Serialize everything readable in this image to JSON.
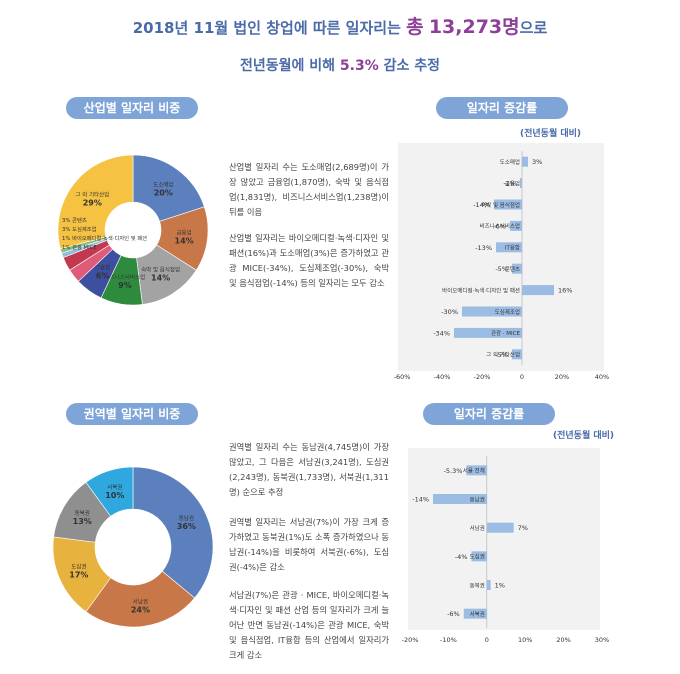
{
  "header": {
    "line1_prefix": "2018년 11월 법인 창업에 따른 일자리는",
    "line1_total_word": "총",
    "line1_total": "13,273명",
    "line1_suffix": "으로",
    "line2_prefix": "전년동월에 비해",
    "line2_pct": "5.3%",
    "line2_suffix": "감소 추정"
  },
  "sections": {
    "industry_share_title": "산업별 일자리 비중",
    "industry_change_title": "일자리 증감률",
    "industry_change_note": "(전년동월 대비)",
    "region_share_title": "권역별 일자리 비중",
    "region_change_title": "일자리 증감률",
    "region_change_note": "(전년동월 대비)"
  },
  "text": {
    "industry_p1": "산업별 일자리 수는 도소매업(2,689명)이 가장 많았고 금융업(1,870명), 숙박 및 음식점업(1,831명), 비즈니스서비스업(1,238명)이 뒤를 이음",
    "industry_p2": "산업별 일자리는 바이오메디컬·녹색·디자인 및 패션(16%)과 도소매업(3%)은 증가하였고 관광 MICE(-34%), 도심제조업(-30%), 숙박 및 음식점업(-14%) 등의 일자리는 모두 감소",
    "region_p1": "권역별 일자리 수는 동남권(4,745명)이 가장 많았고, 그 다음은 서남권(3,241명), 도심권(2,243명), 동북권(1,733명), 서북권(1,311명) 순으로 추정",
    "region_p2": "권역별 일자리는 서남권(7%)이 가장 크게 증가하였고 동북권(1%)도 소폭 증가하였으나 동남권(-14%)을 비롯하여 서북권(-6%), 도심권(-4%)은 감소",
    "region_p3": "서남권(7%)은 관광 · MICE, 바이오메디컬·녹색·디자인 및 패션 산업 등의 일자리가 크게 늘어난 반면 동남권(-14%)은 관광 MICE, 숙박 및 음식점업, IT융합 등의 산업에서 일자리가 크게 감소"
  },
  "chart_data": [
    {
      "type": "pie",
      "title": "산업별 일자리 비중",
      "slices": [
        {
          "label": "도소매업",
          "value": 20,
          "text": "20%",
          "color": "#5b80bd"
        },
        {
          "label": "금융업",
          "value": 14,
          "text": "14%",
          "color": "#c87848"
        },
        {
          "label": "숙박 및 음식점업",
          "value": 14,
          "text": "14%",
          "color": "#a3a3a3"
        },
        {
          "label": "비즈니스서비스업",
          "value": 9,
          "text": "9%",
          "color": "#2e8b3e"
        },
        {
          "label": "IT융합",
          "value": 6,
          "text": "6%",
          "color": "#3d4fa0"
        },
        {
          "label": "콘텐츠",
          "value": 3,
          "text": "3%",
          "color": "#e05a7a"
        },
        {
          "label": "도심제조업",
          "value": 3,
          "text": "3%",
          "color": "#c0394e"
        },
        {
          "label": "바이오메디컬·녹색·디자인 및 패션",
          "value": 1,
          "text": "1%",
          "color": "#8fbcdf"
        },
        {
          "label": "관광 MICE",
          "value": 1,
          "text": "1%",
          "color": "#8cc07a"
        },
        {
          "label": "그 외 기타산업",
          "value": 29,
          "text": "29%",
          "color": "#f5c242"
        }
      ]
    },
    {
      "type": "bar",
      "title": "일자리 증감률",
      "note": "(전년동월 대비)",
      "categories": [
        "도소매업",
        "금융업",
        "숙박 및 음식점업",
        "비즈니스서비스업",
        "IT융합",
        "콘텐츠",
        "바이오메디컬·녹색·디자인 및 패션",
        "도심제조업",
        "관광 · MICE",
        "그 외 기타산업"
      ],
      "values": [
        3,
        -1,
        -14,
        -6,
        -13,
        -5,
        16,
        -30,
        -34,
        -5
      ],
      "value_labels": [
        "3%",
        "-1%",
        "-14%",
        "-6%",
        "-13%",
        "-5%",
        "16%",
        "-30%",
        "-34%",
        "-5%"
      ],
      "xlim": [
        -60,
        40
      ],
      "xticks": [
        "-60%",
        "-40%",
        "-20%",
        "0",
        "20%",
        "40%"
      ],
      "color": "#9bbce3"
    },
    {
      "type": "pie",
      "title": "권역별 일자리 비중",
      "slices": [
        {
          "label": "동남권",
          "value": 36,
          "text": "36%",
          "color": "#5b80bd"
        },
        {
          "label": "서남권",
          "value": 24,
          "text": "24%",
          "color": "#c87848"
        },
        {
          "label": "도심권",
          "value": 17,
          "text": "17%",
          "color": "#e7b33e"
        },
        {
          "label": "동북권",
          "value": 13,
          "text": "13%",
          "color": "#8f8f8f"
        },
        {
          "label": "서북권",
          "value": 10,
          "text": "10%",
          "color": "#2fa8e0"
        }
      ]
    },
    {
      "type": "bar",
      "title": "일자리 증감률",
      "note": "(전년동월 대비)",
      "categories": [
        "서울 전체",
        "동남권",
        "서남권",
        "도심권",
        "동북권",
        "서북권"
      ],
      "values": [
        -5.3,
        -14,
        7,
        -4,
        1,
        -6
      ],
      "value_labels": [
        "-5.3%",
        "-14%",
        "7%",
        "-4%",
        "1%",
        "-6%"
      ],
      "xlim": [
        -20,
        30
      ],
      "xticks": [
        "-20%",
        "-10%",
        "0",
        "10%",
        "20%",
        "30%"
      ],
      "color": "#9bbce3"
    }
  ]
}
